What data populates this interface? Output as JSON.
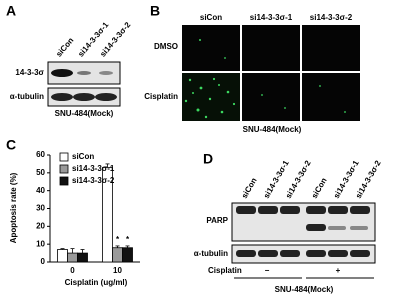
{
  "panel_a": {
    "letter": "A",
    "lanes": [
      "siCon",
      "si14-3-3σ-1",
      "si14-3-3σ-2"
    ],
    "rows": [
      "14-3-3σ",
      "α-tubulin"
    ],
    "cell_line": "SNU-484(Mock)"
  },
  "panel_b": {
    "letter": "B",
    "columns": [
      "siCon",
      "si14-3-3σ-1",
      "si14-3-3σ-2"
    ],
    "rows": [
      "DMSO",
      "Cisplatin"
    ],
    "cell_line": "SNU-484(Mock)"
  },
  "chart_data": {
    "type": "bar",
    "panel": "C",
    "ylabel": "Apoptosis rate (%)",
    "xlabel": "Cisplatin (ug/ml)",
    "categories": [
      "0",
      "10"
    ],
    "series": [
      {
        "name": "siCon",
        "color": "#ffffff",
        "values": [
          7,
          53
        ],
        "errors": [
          0.5,
          2
        ],
        "annotations": [
          null,
          null
        ]
      },
      {
        "name": "si14-3-3σ-1",
        "color": "#9a9a9a",
        "values": [
          5,
          8
        ],
        "errors": [
          2.5,
          1
        ],
        "annotations": [
          null,
          "*"
        ]
      },
      {
        "name": "si14-3-3σ-2",
        "color": "#111111",
        "values": [
          5,
          8
        ],
        "errors": [
          2,
          1
        ],
        "annotations": [
          null,
          "*"
        ]
      }
    ],
    "ylim": [
      0,
      60
    ],
    "yticks": [
      0,
      10,
      20,
      30,
      40,
      50,
      60
    ]
  },
  "panel_d": {
    "letter": "D",
    "lanes": [
      "siCon",
      "si14-3-3σ-1",
      "si14-3-3σ-2",
      "siCon",
      "si14-3-3σ-1",
      "si14-3-3σ-2"
    ],
    "rows": [
      "PARP",
      "α-tubulin"
    ],
    "treatment": "Cisplatin",
    "treatment_levels": [
      "−",
      "+"
    ],
    "cell_line": "SNU-484(Mock)"
  }
}
